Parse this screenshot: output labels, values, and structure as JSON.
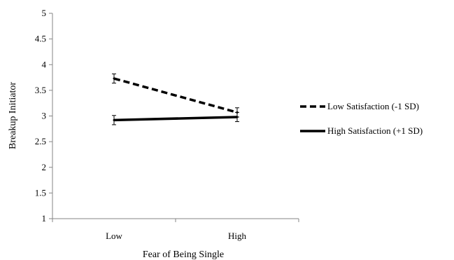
{
  "chart_data": {
    "type": "line",
    "title": "",
    "xlabel": "Fear of Being Single",
    "ylabel": "Breakup Initiator",
    "categories": [
      "Low",
      "High"
    ],
    "ylim": [
      1,
      5
    ],
    "yticks": [
      "1",
      "1.5",
      "2",
      "2.5",
      "3",
      "3.5",
      "4",
      "4.5",
      "5"
    ],
    "grid": false,
    "legend_position": "right",
    "series": [
      {
        "name": "Low Satisfaction (-1 SD)",
        "line_style": "dashed",
        "color": "#000000",
        "values": [
          3.73,
          3.07
        ],
        "error": [
          0.09,
          0.09
        ]
      },
      {
        "name": "High Satisfaction (+1 SD)",
        "line_style": "solid",
        "color": "#000000",
        "values": [
          2.92,
          2.98
        ],
        "error": [
          0.09,
          0.09
        ]
      }
    ]
  }
}
